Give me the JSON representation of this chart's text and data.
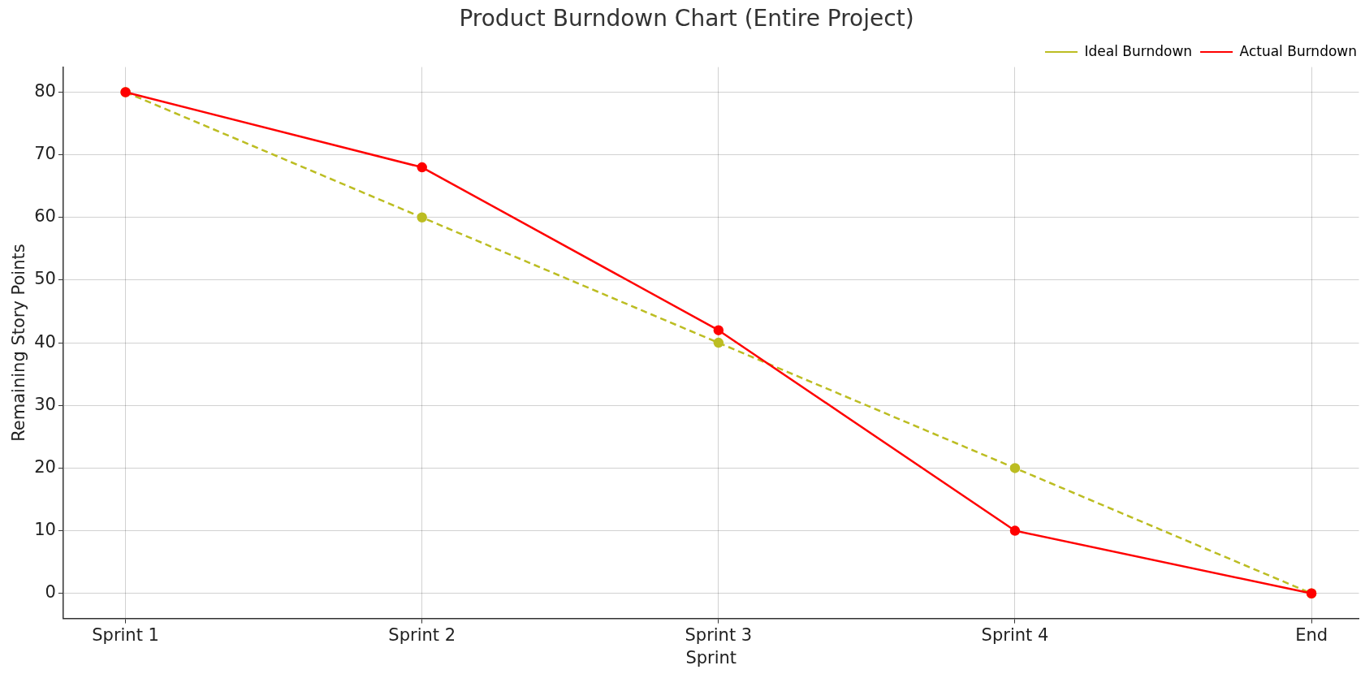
{
  "chart_data": {
    "type": "line",
    "title": "Product Burndown Chart (Entire Project)",
    "xlabel": "Sprint",
    "ylabel": "Remaining Story Points",
    "categories": [
      "Sprint 1",
      "Sprint 2",
      "Sprint 3",
      "Sprint 4",
      "End"
    ],
    "series": [
      {
        "name": "Ideal Burndown",
        "color": "#bcbd22",
        "values": [
          80,
          60,
          40,
          20,
          0
        ],
        "line_style": "dashed"
      },
      {
        "name": "Actual Burndown",
        "color": "#ff0000",
        "values": [
          80,
          68,
          42,
          10,
          0
        ],
        "line_style": "solid"
      }
    ],
    "ylim": [
      -4,
      84
    ],
    "yticks": [
      0,
      10,
      20,
      30,
      40,
      50,
      60,
      70,
      80
    ],
    "grid": true,
    "legend": "top right",
    "marker": "circle"
  }
}
